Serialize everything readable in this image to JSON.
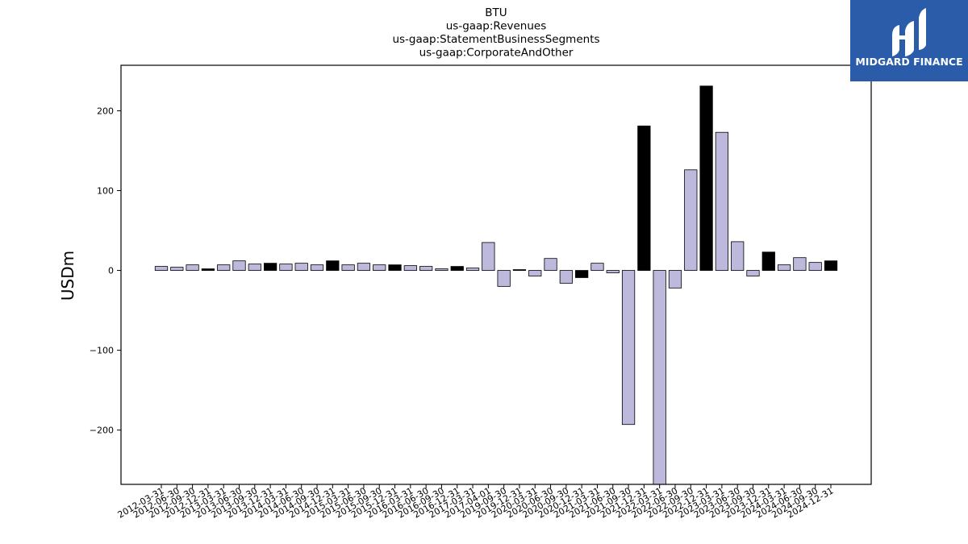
{
  "chart_data": {
    "type": "bar",
    "title": [
      "BTU",
      "us-gaap:Revenues",
      "us-gaap:StatementBusinessSegments",
      "us-gaap:CorporateAndOther"
    ],
    "xlabel": "",
    "ylabel": "USDm",
    "ylim": [
      -268,
      257
    ],
    "yticks": [
      -200,
      -100,
      0,
      100,
      200
    ],
    "ytick_labels": [
      "−200",
      "−100",
      "0",
      "100",
      "200"
    ],
    "grid": false,
    "colors": {
      "default": "#bcb9dc",
      "highlight": "#000000",
      "edge": "#000000"
    },
    "categories": [
      "2012-03-31",
      "2012-06-30",
      "2012-09-30",
      "2012-12-31",
      "2013-03-31",
      "2013-06-30",
      "2013-09-30",
      "2013-12-31",
      "2014-03-31",
      "2014-06-30",
      "2014-09-30",
      "2014-12-31",
      "2015-03-31",
      "2015-06-30",
      "2015-09-30",
      "2015-12-31",
      "2016-03-31",
      "2016-06-30",
      "2016-09-30",
      "2016-12-31",
      "2017-03-31",
      "2017-04-01",
      "2019-09-30",
      "2019-12-31",
      "2020-03-31",
      "2020-06-30",
      "2020-09-30",
      "2020-12-31",
      "2021-03-31",
      "2021-06-30",
      "2021-09-30",
      "2021-12-31",
      "2022-03-31",
      "2022-06-30",
      "2022-09-30",
      "2022-12-31",
      "2023-03-31",
      "2023-06-30",
      "2023-09-30",
      "2023-12-31",
      "2024-03-31",
      "2024-06-30",
      "2024-09-30",
      "2024-12-31"
    ],
    "values": [
      5,
      4,
      7,
      2,
      7,
      12,
      8,
      9,
      8,
      9,
      7,
      12,
      7,
      9,
      7,
      7,
      6,
      5,
      2,
      5,
      3,
      35,
      -20,
      1,
      -7,
      15,
      -16,
      -9,
      9,
      -3,
      -193,
      181,
      -268,
      -22,
      126,
      231,
      173,
      36,
      -7,
      23,
      7,
      16,
      10,
      12
    ],
    "highlighted": [
      false,
      false,
      false,
      true,
      false,
      false,
      false,
      true,
      false,
      false,
      false,
      true,
      false,
      false,
      false,
      true,
      false,
      false,
      false,
      true,
      false,
      false,
      false,
      true,
      false,
      false,
      false,
      true,
      false,
      false,
      false,
      true,
      false,
      false,
      false,
      true,
      false,
      false,
      false,
      true,
      false,
      false,
      false,
      true
    ]
  },
  "logo": {
    "text": "MIDGARD FINANCE",
    "background": "#2a5caa"
  }
}
